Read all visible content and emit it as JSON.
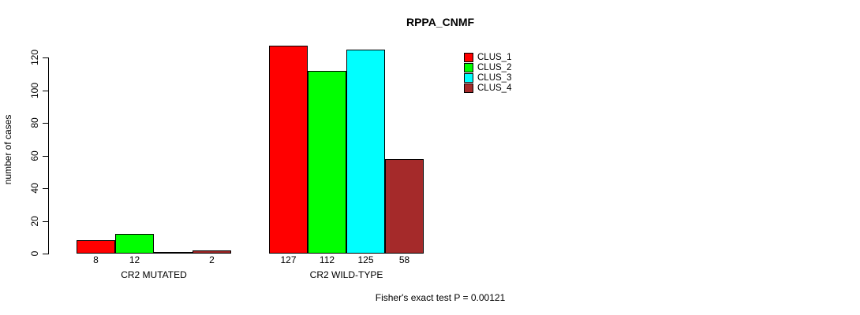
{
  "chart_data": {
    "type": "bar",
    "title": "RPPA_CNMF",
    "ylabel": "number of cases",
    "xlabel": "",
    "categories": [
      "CR2 MUTATED",
      "CR2 WILD-TYPE"
    ],
    "series": [
      {
        "name": "CLUS_1",
        "color": "#FF0000",
        "values": [
          8,
          127
        ]
      },
      {
        "name": "CLUS_2",
        "color": "#00FF00",
        "values": [
          12,
          112
        ]
      },
      {
        "name": "CLUS_3",
        "color": "#00FFFF",
        "values": [
          0,
          125
        ]
      },
      {
        "name": "CLUS_4",
        "color": "#A52A2A",
        "values": [
          2,
          58
        ]
      }
    ],
    "bar_value_labels": [
      [
        "8",
        "12",
        "",
        "2"
      ],
      [
        "127",
        "112",
        "125",
        "58"
      ]
    ],
    "yticks": [
      0,
      20,
      40,
      60,
      80,
      100,
      120
    ],
    "ylim": [
      0,
      130
    ],
    "grid": false,
    "legend_position": "top-right",
    "annotation": "Fisher's exact test P = 0.00121",
    "colors": {
      "background": "#FFFFFF",
      "axis": "#000000",
      "bar_border": "#000000",
      "text": "#000000"
    }
  }
}
